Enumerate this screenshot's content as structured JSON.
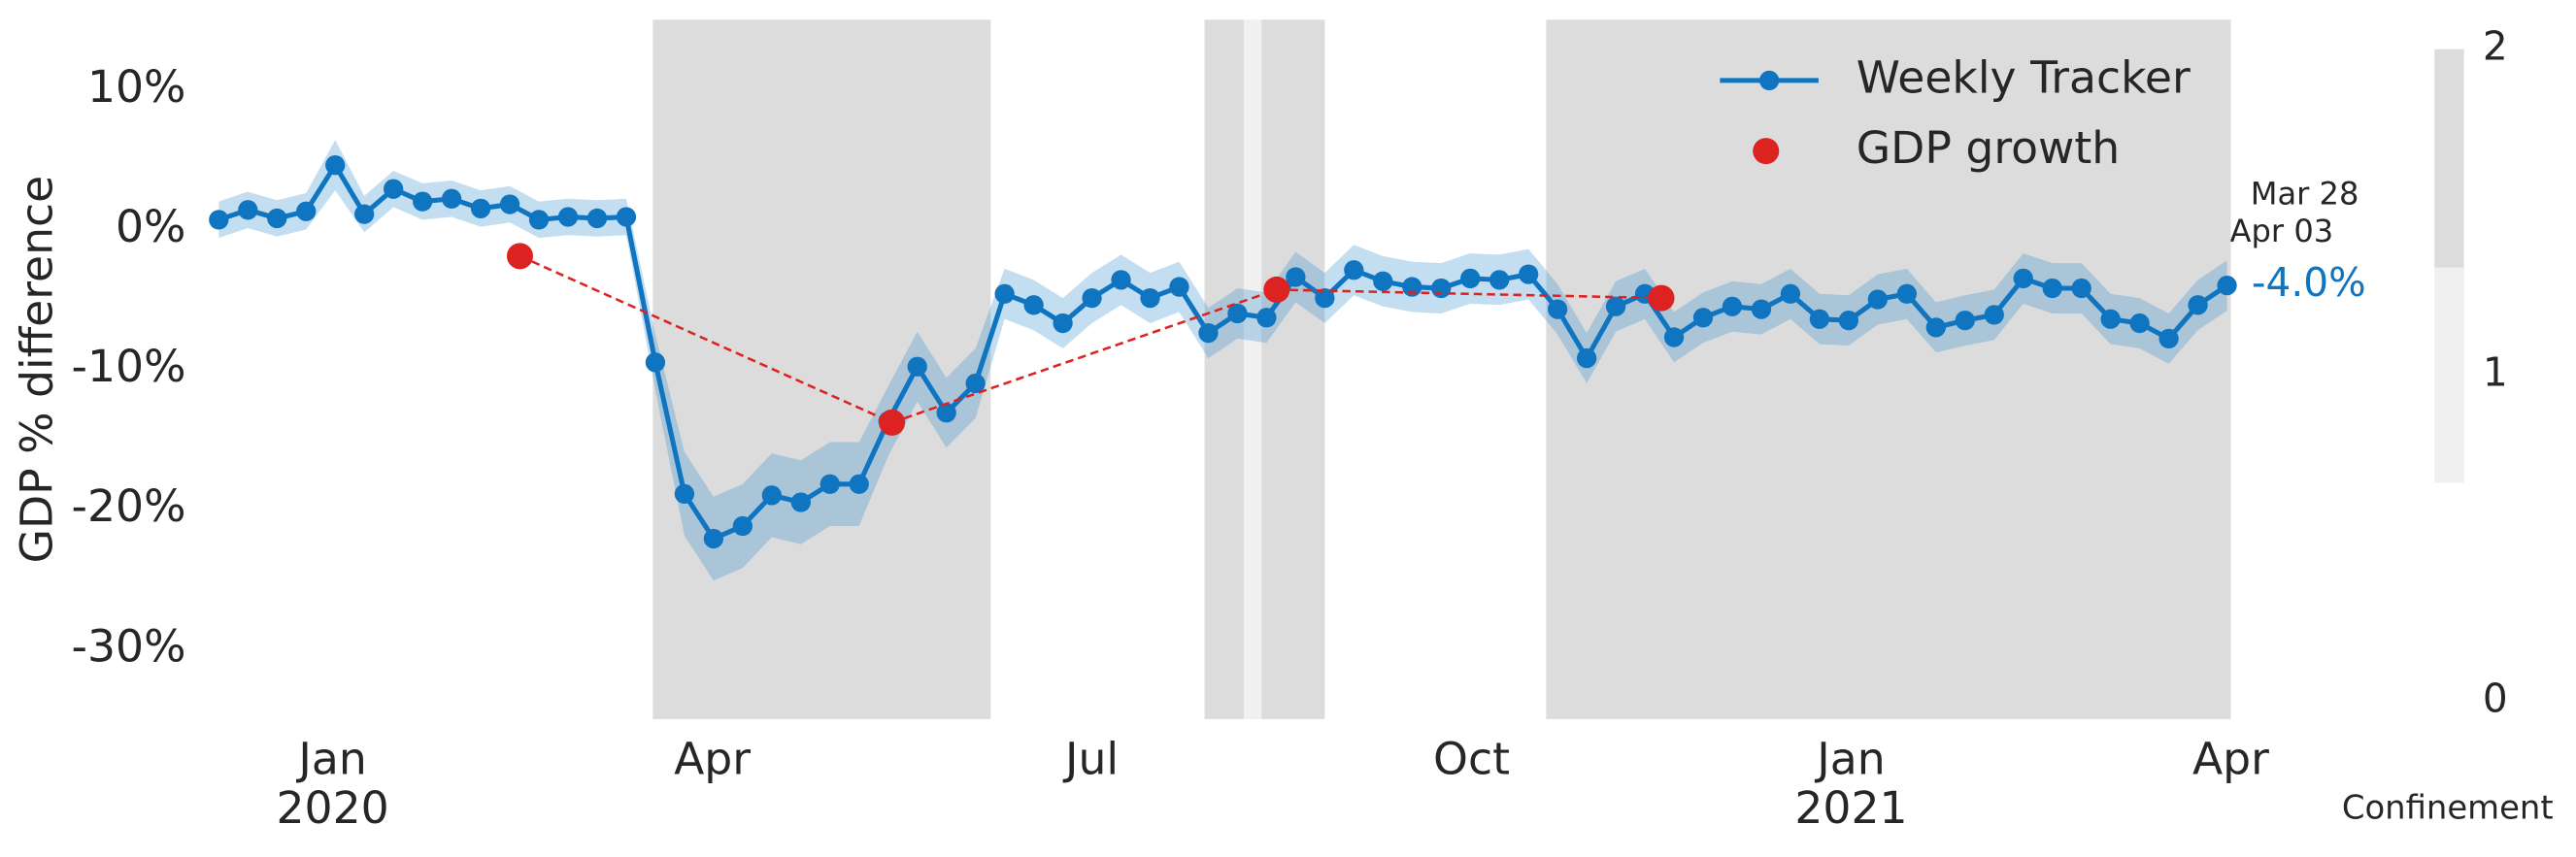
{
  "chart_data": {
    "type": "line",
    "y_label": "GDP % difference",
    "xlim": [
      -1.03,
      15
    ],
    "ylim": [
      -35,
      15
    ],
    "grid": false,
    "legend": "upper right",
    "xticks": [
      {
        "value": 0,
        "label": "Jan"
      },
      {
        "value": 3,
        "label": "Apr"
      },
      {
        "value": 6,
        "label": "Jul"
      },
      {
        "value": 9,
        "label": "Oct"
      },
      {
        "value": 12,
        "label": "Jan"
      },
      {
        "value": 15,
        "label": "Apr"
      }
    ],
    "xtick_years": [
      {
        "value": 0,
        "label": "2020"
      },
      {
        "value": 12,
        "label": "2021"
      }
    ],
    "yticks": [
      {
        "value": 10,
        "label": "10%"
      },
      {
        "value": 0,
        "label": "0%"
      },
      {
        "value": -10,
        "label": "-10%"
      },
      {
        "value": -20,
        "label": "-20%"
      },
      {
        "value": -30,
        "label": "-30%"
      }
    ],
    "annotations": [
      "Mar 28",
      "Apr 03"
    ],
    "series": [
      {
        "name": "Weekly Tracker",
        "color": "#1075c1",
        "band_color": "rgba(60,145,210,0.3)",
        "x": [
          -0.9,
          -0.67,
          -0.44,
          -0.21,
          0.02,
          0.25,
          0.48,
          0.71,
          0.94,
          1.17,
          1.4,
          1.63,
          1.86,
          2.09,
          2.32,
          2.55,
          2.78,
          3.01,
          3.24,
          3.47,
          3.7,
          3.93,
          4.16,
          4.39,
          4.62,
          4.85,
          5.08,
          5.31,
          5.54,
          5.77,
          6.0,
          6.23,
          6.46,
          6.69,
          6.92,
          7.15,
          7.38,
          7.61,
          7.84,
          8.07,
          8.3,
          8.53,
          8.76,
          8.99,
          9.22,
          9.45,
          9.68,
          9.91,
          10.14,
          10.37,
          10.6,
          10.83,
          11.06,
          11.29,
          11.52,
          11.75,
          11.98,
          12.21,
          12.44,
          12.67,
          12.9,
          13.13,
          13.36,
          13.59,
          13.82,
          14.05,
          14.28,
          14.51,
          14.74,
          14.97
        ],
        "values": [
          0.7,
          1.4,
          0.8,
          1.3,
          4.6,
          1.1,
          2.9,
          2.0,
          2.2,
          1.5,
          1.8,
          0.7,
          0.9,
          0.8,
          0.9,
          -9.5,
          -18.9,
          -22.1,
          -21.2,
          -19.0,
          -19.5,
          -18.2,
          -18.2,
          -13.7,
          -9.8,
          -13.1,
          -11.0,
          -4.6,
          -5.4,
          -6.7,
          -4.9,
          -3.6,
          -4.9,
          -4.1,
          -7.4,
          -6.0,
          -6.3,
          -3.4,
          -4.9,
          -2.9,
          -3.7,
          -4.1,
          -4.2,
          -3.5,
          -3.6,
          -3.2,
          -5.7,
          -9.2,
          -5.5,
          -4.6,
          -7.7,
          -6.3,
          -5.5,
          -5.7,
          -4.6,
          -6.4,
          -6.5,
          -5.0,
          -4.6,
          -7.0,
          -6.5,
          -6.1,
          -3.5,
          -4.2,
          -4.2,
          -6.4,
          -6.7,
          -7.8,
          -5.4,
          -4.0
        ],
        "ci": [
          1.3,
          1.3,
          1.3,
          1.3,
          1.8,
          1.3,
          1.3,
          1.3,
          1.3,
          1.3,
          1.3,
          1.3,
          1.3,
          1.3,
          1.3,
          2,
          3,
          3,
          3,
          3,
          3,
          3,
          3,
          2.5,
          2.5,
          2.5,
          2.5,
          1.8,
          1.8,
          1.8,
          1.8,
          1.8,
          1.8,
          1.8,
          1.8,
          1.8,
          1.8,
          1.8,
          1.8,
          1.8,
          1.8,
          1.8,
          1.8,
          1.8,
          1.8,
          1.8,
          1.8,
          1.8,
          1.8,
          1.8,
          1.8,
          1.8,
          1.8,
          1.8,
          1.8,
          1.8,
          1.8,
          1.8,
          1.8,
          1.8,
          1.8,
          1.8,
          1.8,
          1.8,
          1.8,
          1.8,
          1.8,
          1.8,
          1.8,
          1.8
        ],
        "value_labels": [
          null,
          null,
          null,
          null,
          null,
          null,
          null,
          null,
          null,
          null,
          null,
          null,
          null,
          null,
          null,
          null,
          null,
          null,
          null,
          null,
          null,
          null,
          null,
          null,
          null,
          null,
          null,
          null,
          null,
          null,
          null,
          null,
          null,
          null,
          null,
          null,
          null,
          null,
          null,
          null,
          null,
          null,
          null,
          null,
          null,
          null,
          null,
          null,
          null,
          null,
          null,
          null,
          null,
          null,
          null,
          null,
          null,
          null,
          null,
          null,
          null,
          null,
          null,
          null,
          null,
          null,
          null,
          null,
          null,
          "-4.0%"
        ]
      },
      {
        "name": "GDP growth",
        "color": "#dd2222",
        "style": "dashed",
        "x": [
          1.48,
          4.42,
          7.46,
          10.5
        ],
        "values": [
          -1.9,
          -13.8,
          -4.3,
          -4.9
        ]
      }
    ],
    "confinement": [
      {
        "start": 2.53,
        "end": 5.2,
        "level": 2
      },
      {
        "start": 6.89,
        "end": 7.2,
        "level": 2
      },
      {
        "start": 7.2,
        "end": 7.34,
        "level": 1
      },
      {
        "start": 7.34,
        "end": 7.84,
        "level": 2
      },
      {
        "start": 9.59,
        "end": 15,
        "level": 2
      }
    ],
    "colorbar": {
      "label": "Confinement",
      "lim": [
        0,
        2
      ],
      "ticks": [
        0,
        1,
        2
      ],
      "segments": [
        {
          "from": 0.67,
          "to": 1.33,
          "color": "#f0f0f0"
        },
        {
          "from": 1.33,
          "to": 2,
          "color": "#dcdcdc"
        }
      ]
    }
  }
}
